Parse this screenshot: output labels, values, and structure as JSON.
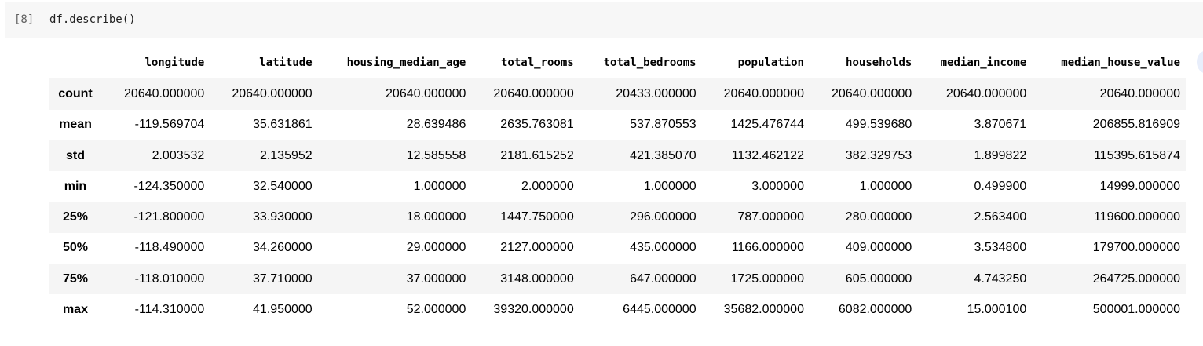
{
  "cell": {
    "execution_count": "[8]",
    "code": "df.describe()"
  },
  "table": {
    "columns": [
      "longitude",
      "latitude",
      "housing_median_age",
      "total_rooms",
      "total_bedrooms",
      "population",
      "households",
      "median_income",
      "median_house_value"
    ],
    "rows": [
      {
        "label": "count",
        "values": [
          "20640.000000",
          "20640.000000",
          "20640.000000",
          "20640.000000",
          "20433.000000",
          "20640.000000",
          "20640.000000",
          "20640.000000",
          "20640.000000"
        ]
      },
      {
        "label": "mean",
        "values": [
          "-119.569704",
          "35.631861",
          "28.639486",
          "2635.763081",
          "537.870553",
          "1425.476744",
          "499.539680",
          "3.870671",
          "206855.816909"
        ]
      },
      {
        "label": "std",
        "values": [
          "2.003532",
          "2.135952",
          "12.585558",
          "2181.615252",
          "421.385070",
          "1132.462122",
          "382.329753",
          "1.899822",
          "115395.615874"
        ]
      },
      {
        "label": "min",
        "values": [
          "-124.350000",
          "32.540000",
          "1.000000",
          "2.000000",
          "1.000000",
          "3.000000",
          "1.000000",
          "0.499900",
          "14999.000000"
        ]
      },
      {
        "label": "25%",
        "values": [
          "-121.800000",
          "33.930000",
          "18.000000",
          "1447.750000",
          "296.000000",
          "787.000000",
          "280.000000",
          "2.563400",
          "119600.000000"
        ]
      },
      {
        "label": "50%",
        "values": [
          "-118.490000",
          "34.260000",
          "29.000000",
          "2127.000000",
          "435.000000",
          "1166.000000",
          "409.000000",
          "3.534800",
          "179700.000000"
        ]
      },
      {
        "label": "75%",
        "values": [
          "-118.010000",
          "37.710000",
          "37.000000",
          "3148.000000",
          "647.000000",
          "1725.000000",
          "605.000000",
          "4.743250",
          "264725.000000"
        ]
      },
      {
        "label": "max",
        "values": [
          "-114.310000",
          "41.950000",
          "52.000000",
          "39320.000000",
          "6445.000000",
          "35682.000000",
          "6082.000000",
          "15.000100",
          "500001.000000"
        ]
      }
    ]
  }
}
